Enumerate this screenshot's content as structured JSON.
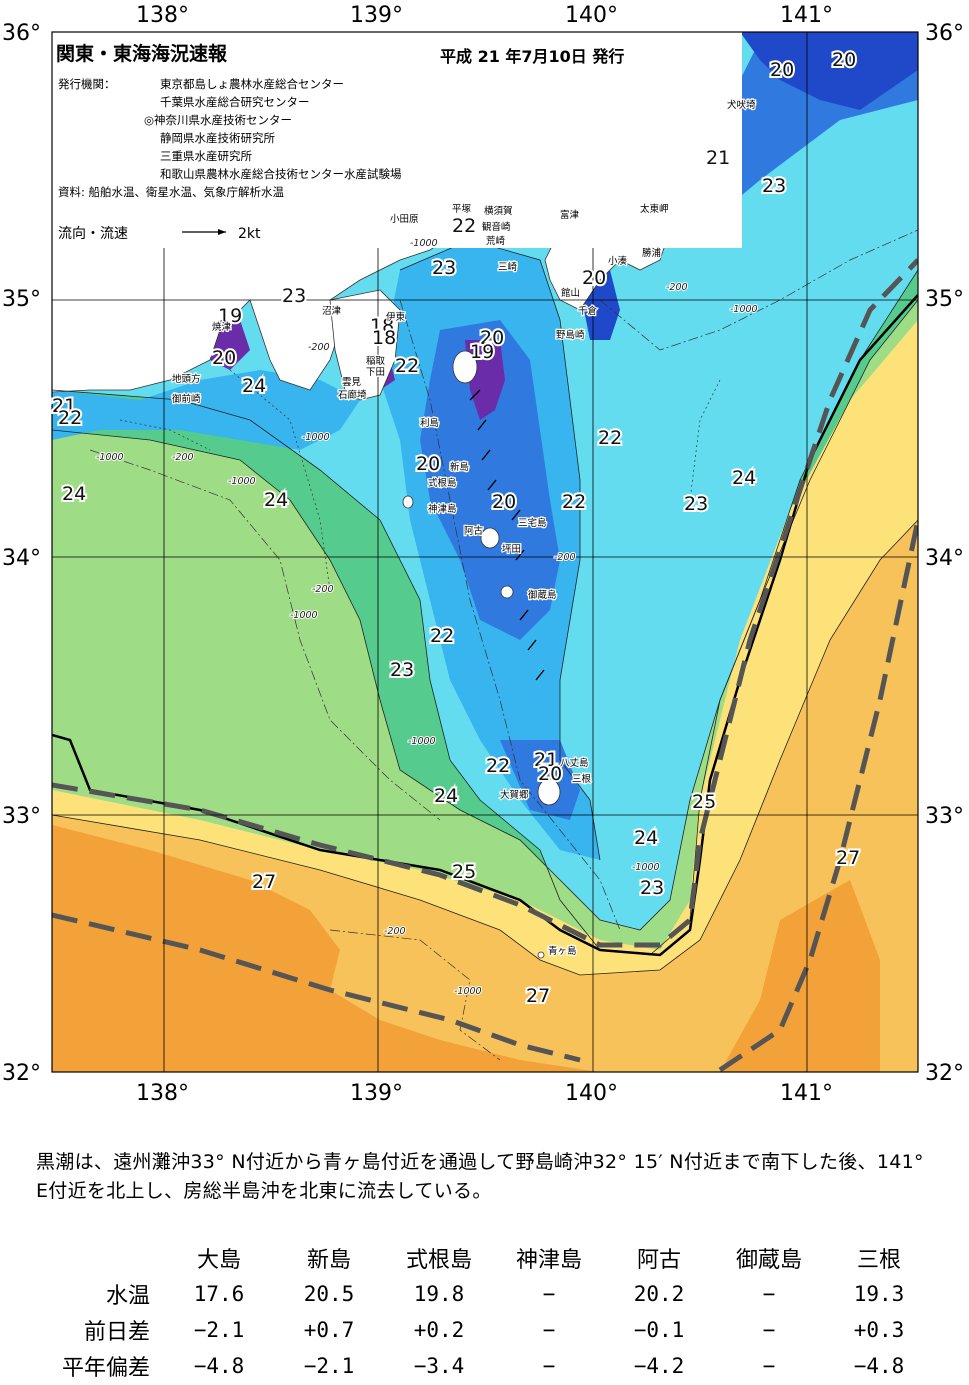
{
  "map": {
    "title": "関東・東海海況速報",
    "issued": "平成 21 年7月10日 発行",
    "agencies_label": "発行機関：",
    "agencies": [
      "東京都島しょ農林水産総合センター",
      "千葉県水産総合研究センター",
      "◎神奈川県水産技術センター",
      "静岡県水産技術研究所",
      "三重県水産研究所",
      "和歌山県農林水産総合技術センター水産試験場"
    ],
    "sources": "資料: 船舶水温、衛星水温、気象庁解析水温",
    "current_legend_label": "流向・流速",
    "current_legend_unit": "2kt",
    "lon_labels": [
      "138°",
      "139°",
      "140°",
      "141°"
    ],
    "lat_labels": [
      "36°",
      "35°",
      "34°",
      "33°",
      "32°"
    ],
    "isotherm_labels": [
      "20",
      "20",
      "21",
      "23",
      "20",
      "22",
      "23",
      "23",
      "19",
      "20",
      "24",
      "18",
      "18",
      "22",
      "21",
      "22",
      "24",
      "24",
      "20",
      "19",
      "20",
      "22",
      "20",
      "22",
      "23",
      "24",
      "22",
      "23",
      "24",
      "25",
      "21",
      "20",
      "22",
      "24",
      "25",
      "27",
      "23",
      "27",
      "27"
    ],
    "depth_labels": [
      "-1000",
      "-200",
      "-1000",
      "-200",
      "-1000",
      "-200",
      "-1000",
      "-200",
      "-1000",
      "-1000",
      "-1000",
      "-200",
      "-1000",
      "-200",
      "-1000"
    ],
    "place_names": [
      "犬吠埼",
      "太東岬",
      "勝浦",
      "小湊",
      "富津",
      "館山",
      "千倉",
      "野島崎",
      "平塚",
      "横須賀",
      "観音崎",
      "荒崎",
      "三崎",
      "小田原",
      "沼津",
      "伊東",
      "稲取",
      "下田",
      "雲見",
      "石廊埼",
      "焼津",
      "地頭方",
      "御前崎",
      "利島",
      "新島",
      "式根島",
      "神津島",
      "三宅島",
      "阿古",
      "坪田",
      "御蔵島",
      "八丈島",
      "三根",
      "大賀郷",
      "青ヶ島"
    ],
    "colors": {
      "land": "#ffffff",
      "t27": "#f2a238",
      "t26": "#f8c25a",
      "t25": "#fde27a",
      "t24": "#9fdc86",
      "t23": "#55cc8e",
      "t22": "#64dcf0",
      "t21": "#38b4ee",
      "t20": "#2f79df",
      "t19": "#1f49c9",
      "t18": "#6a2ca8",
      "kuroshio_axis": "#555555"
    }
  },
  "description": "黒潮は、遠州灘沖33° N付近から青ヶ島付近を通過して野島崎沖32° 15′ N付近まで南下した後、141° E付近を北上し、房総半島沖を北東に流去している。",
  "table": {
    "stations": [
      "大島",
      "新島",
      "式根島",
      "神津島",
      "阿古",
      "御蔵島",
      "三根"
    ],
    "rows": [
      {
        "label": "水温",
        "values": [
          "17.6",
          "20.5",
          "19.8",
          "−",
          "20.2",
          "−",
          "19.3"
        ]
      },
      {
        "label": "前日差",
        "values": [
          "−2.1",
          "+0.7",
          "+0.2",
          "−",
          "−0.1",
          "−",
          "+0.3"
        ]
      },
      {
        "label": "平年偏差",
        "values": [
          "−4.8",
          "−2.1",
          "−3.4",
          "−",
          "−4.2",
          "−",
          "−4.8"
        ]
      }
    ]
  }
}
